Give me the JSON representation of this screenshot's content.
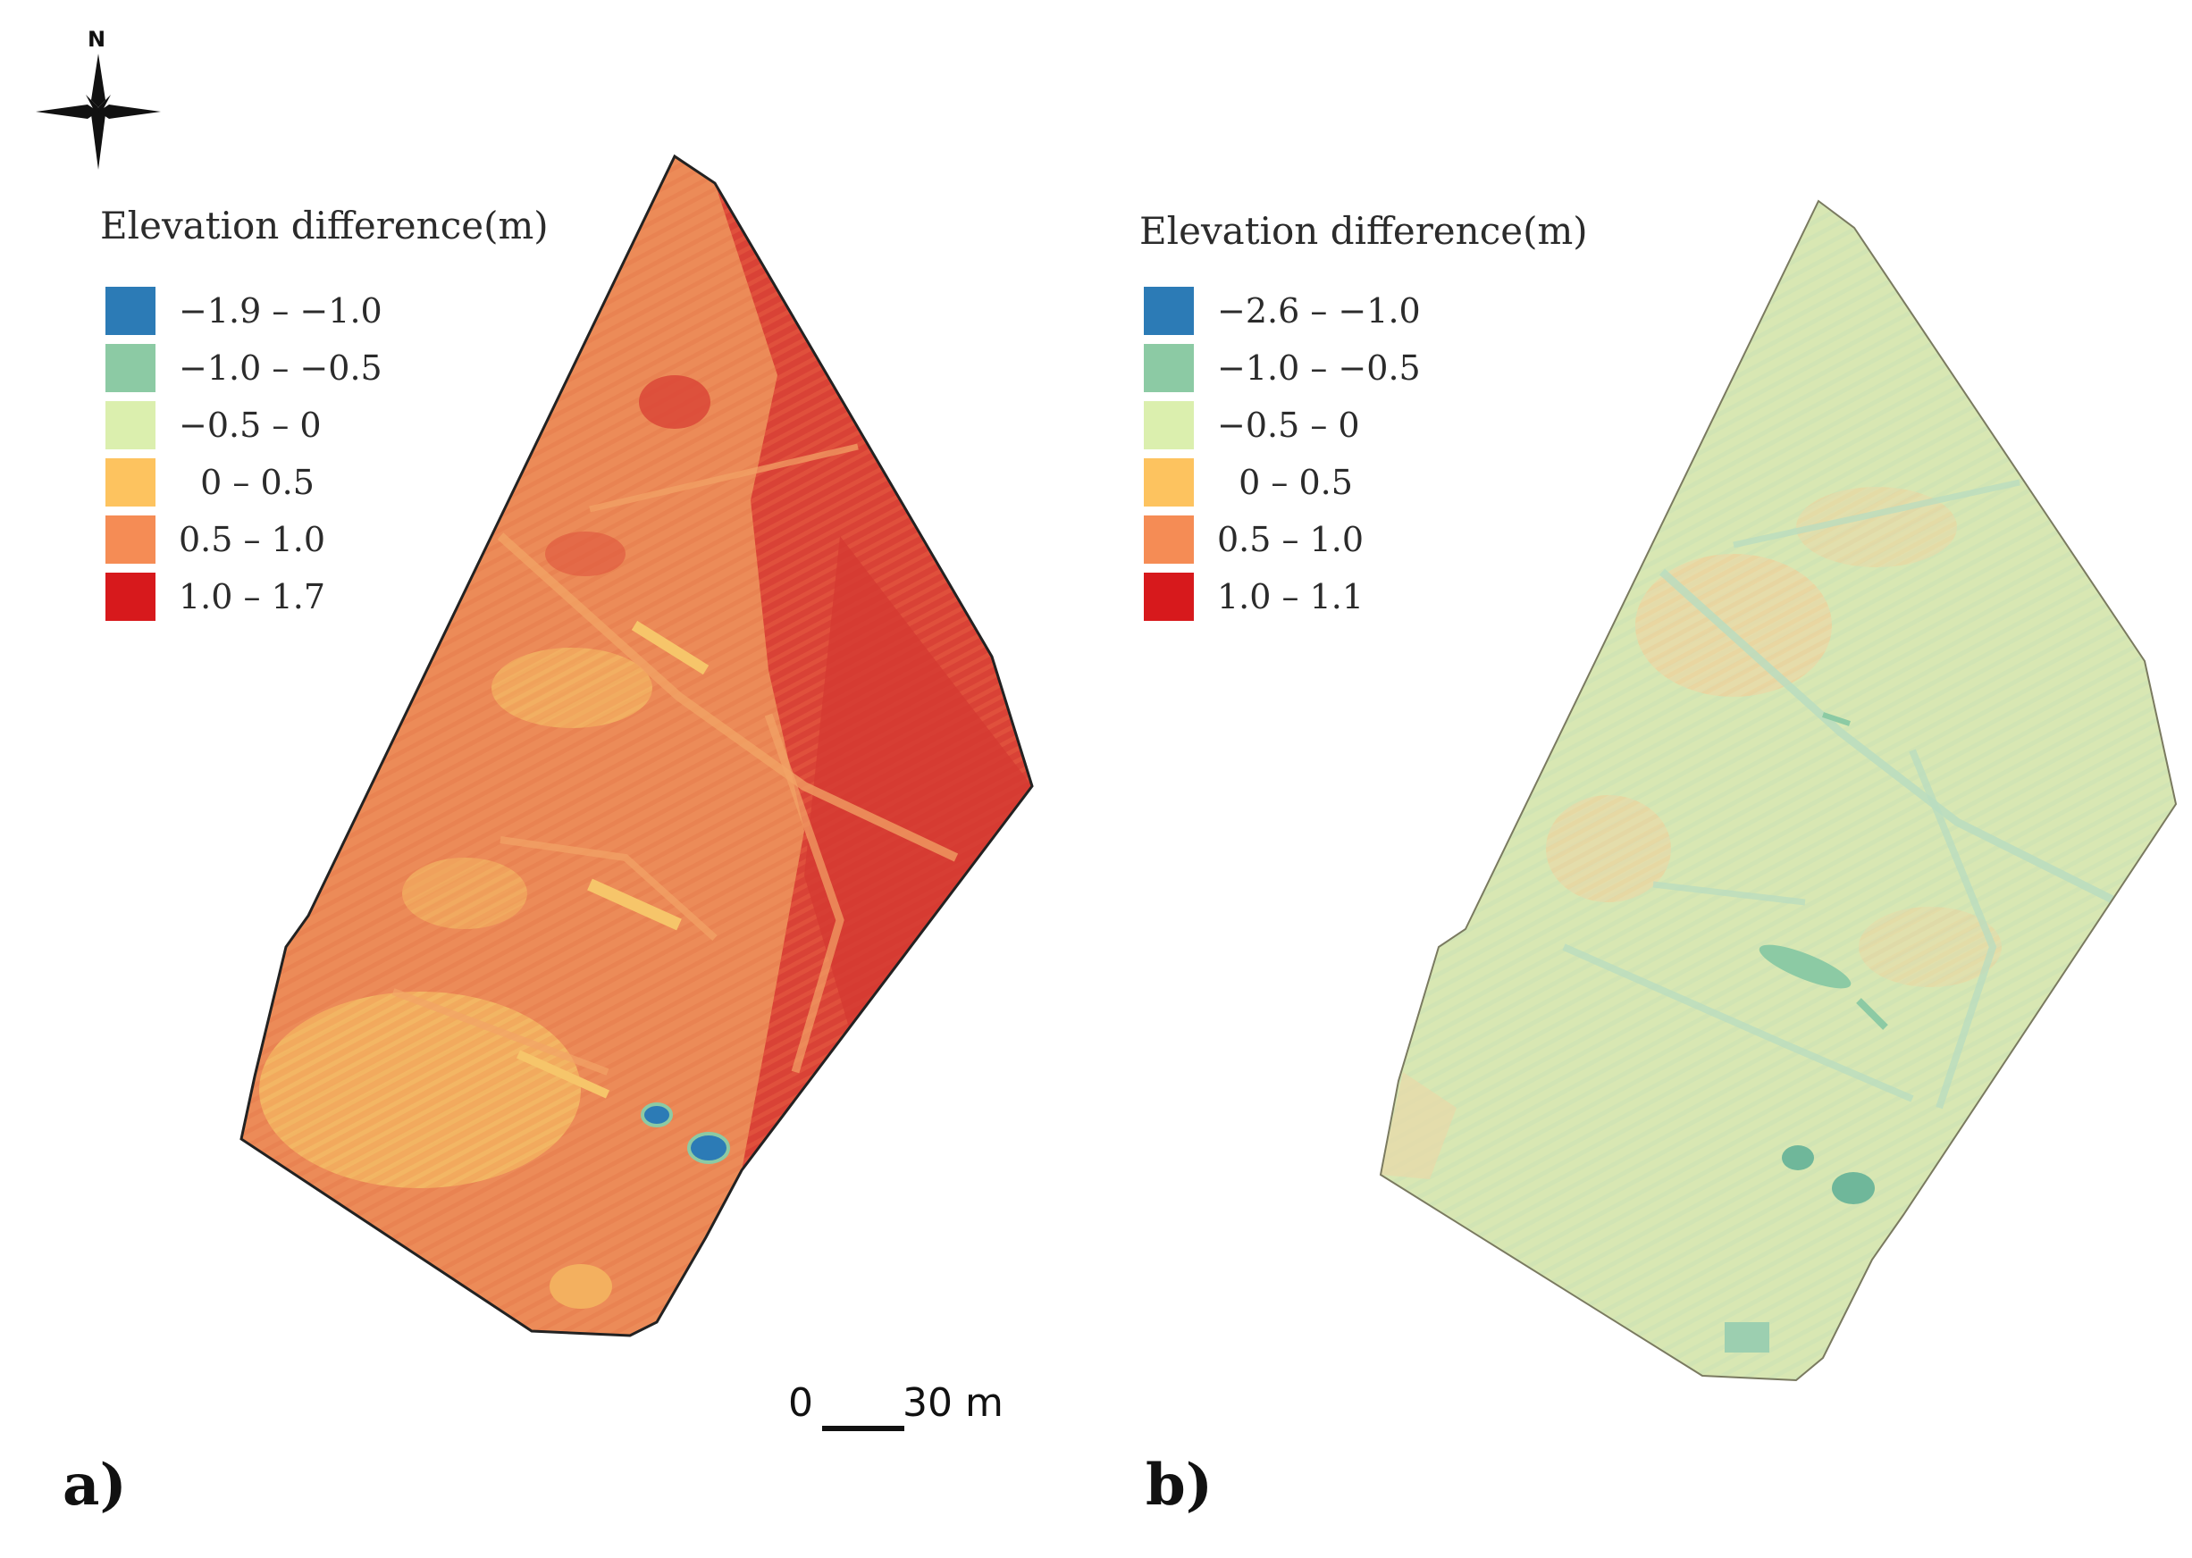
{
  "north_arrow": {
    "letter": "N",
    "icon": "north-arrow-icon"
  },
  "panels": [
    {
      "label": "a)",
      "legend": {
        "title": "Elevation difference(m)",
        "classes": [
          {
            "label": "−1.9 – −1.0",
            "color": "#2c7bb6"
          },
          {
            "label": "−1.0 – −0.5",
            "color": "#8ccaa4"
          },
          {
            "label": "−0.5 – 0",
            "color": "#dbefae"
          },
          {
            "label": "  0 – 0.5",
            "color": "#fdc35f"
          },
          {
            "label": "0.5 – 1.0",
            "color": "#f58c55"
          },
          {
            "label": "1.0 – 1.7",
            "color": "#d7191c"
          }
        ]
      },
      "dominant_color": "#ee8a57"
    },
    {
      "label": "b)",
      "legend": {
        "title": "Elevation difference(m)",
        "classes": [
          {
            "label": "−2.6 – −1.0",
            "color": "#2c7bb6"
          },
          {
            "label": "−1.0 – −0.5",
            "color": "#8ccaa4"
          },
          {
            "label": "−0.5 – 0",
            "color": "#dbefae"
          },
          {
            "label": "  0 – 0.5",
            "color": "#fdc35f"
          },
          {
            "label": "0.5 – 1.0",
            "color": "#f58c55"
          },
          {
            "label": "1.0 – 1.1",
            "color": "#d7191c"
          }
        ]
      },
      "dominant_color": "#d6e6b4"
    }
  ],
  "scale_bar": {
    "start": "0",
    "end": "30 m"
  }
}
